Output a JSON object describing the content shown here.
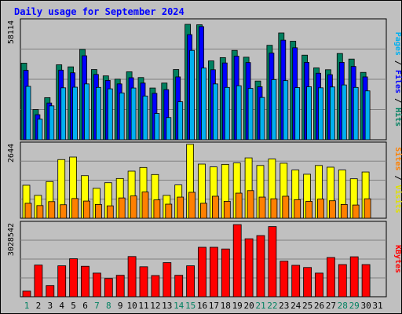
{
  "chart_data": {
    "type": "bar",
    "title": "Daily usage for September 2024",
    "x": [
      "1",
      "2",
      "3",
      "4",
      "5",
      "6",
      "7",
      "8",
      "9",
      "10",
      "11",
      "12",
      "13",
      "14",
      "15",
      "16",
      "17",
      "18",
      "19",
      "20",
      "21",
      "22",
      "23",
      "24",
      "25",
      "26",
      "27",
      "28",
      "29",
      "30",
      "31"
    ],
    "weekend_days": [
      1,
      7,
      8,
      14,
      15,
      21,
      22,
      28,
      29
    ],
    "panels": [
      {
        "id": "top",
        "ymax_label": "58114",
        "ymax": 58114,
        "ylabel_parts": [
          {
            "text": "Pages",
            "color": "#00b0f0"
          },
          {
            "text": " / ",
            "color": "#000000"
          },
          {
            "text": "Files",
            "color": "#0000ff"
          },
          {
            "text": " / ",
            "color": "#000000"
          },
          {
            "text": "Hits",
            "color": "#008060"
          }
        ],
        "series": [
          {
            "name": "Hits",
            "color": "#008060",
            "values": [
              37300,
              14700,
              20500,
              36500,
              35500,
              44000,
              34200,
              31100,
              29500,
              33100,
              30300,
              25200,
              27600,
              34200,
              56200,
              56000,
              38400,
              40000,
              43500,
              40200,
              28600,
              46000,
              52000,
              48000,
              41200,
              35000,
              34100,
              42000,
              39300,
              32800,
              0
            ]
          },
          {
            "name": "Files",
            "color": "#0000ff",
            "values": [
              33800,
              12200,
              17900,
              33900,
              32600,
              40900,
              31800,
              28900,
              27200,
              30200,
              27600,
              22600,
              24400,
              30600,
              51200,
              55100,
              34100,
              37400,
              40700,
              37600,
              25800,
              42200,
              48500,
              44800,
              37700,
              32400,
              31700,
              37700,
              35700,
              30600,
              0
            ]
          },
          {
            "name": "Pages",
            "color": "#00b0f0",
            "values": [
              26000,
              10000,
              16500,
              25300,
              25600,
              27200,
              25500,
              24800,
              22800,
              25200,
              21300,
              12800,
              10800,
              18500,
              43500,
              34900,
              27200,
              25500,
              26300,
              25000,
              20600,
              29300,
              28800,
              25400,
              25800,
              25300,
              25700,
              26700,
              25500,
              23800,
              0
            ]
          }
        ]
      },
      {
        "id": "middle",
        "ymax_label": "2644",
        "ymax": 2644,
        "ylabel_parts": [
          {
            "text": "Sites",
            "color": "#ff8000"
          },
          {
            "text": " / ",
            "color": "#000000"
          },
          {
            "text": "Visits",
            "color": "#e0e000"
          }
        ],
        "series": [
          {
            "name": "Visits",
            "color": "#ffff00",
            "values": [
              1170,
              810,
              1300,
              2080,
              2170,
              1510,
              1060,
              1260,
              1410,
              1670,
              1800,
              1550,
              810,
              1180,
              2620,
              1920,
              1820,
              1910,
              1960,
              2140,
              1870,
              2100,
              1950,
              1710,
              1560,
              1870,
              1810,
              1710,
              1400,
              1640,
              0
            ]
          },
          {
            "name": "Sites",
            "color": "#ff8000",
            "values": [
              530,
              450,
              590,
              480,
              700,
              610,
              490,
              440,
              720,
              790,
              930,
              650,
              500,
              750,
              920,
              530,
              780,
              600,
              890,
              980,
              750,
              690,
              780,
              660,
              600,
              680,
              620,
              490,
              470,
              690,
              0
            ]
          }
        ]
      },
      {
        "id": "bottom",
        "ymax_label": "3028542",
        "ymax": 3028542,
        "ylabel_parts": [
          {
            "text": "KBytes",
            "color": "#ff0000"
          }
        ],
        "series": [
          {
            "name": "KBytes",
            "color": "#ff0000",
            "values": [
              230000,
              1300000,
              460000,
              1270000,
              1560000,
              1250000,
              970000,
              750000,
              880000,
              1650000,
              1230000,
              870000,
              1400000,
              880000,
              1270000,
              2030000,
              2030000,
              1960000,
              2960000,
              2380000,
              2510000,
              2880000,
              1460000,
              1290000,
              1200000,
              970000,
              1610000,
              1320000,
              1640000,
              1320000,
              0
            ]
          }
        ]
      }
    ]
  }
}
